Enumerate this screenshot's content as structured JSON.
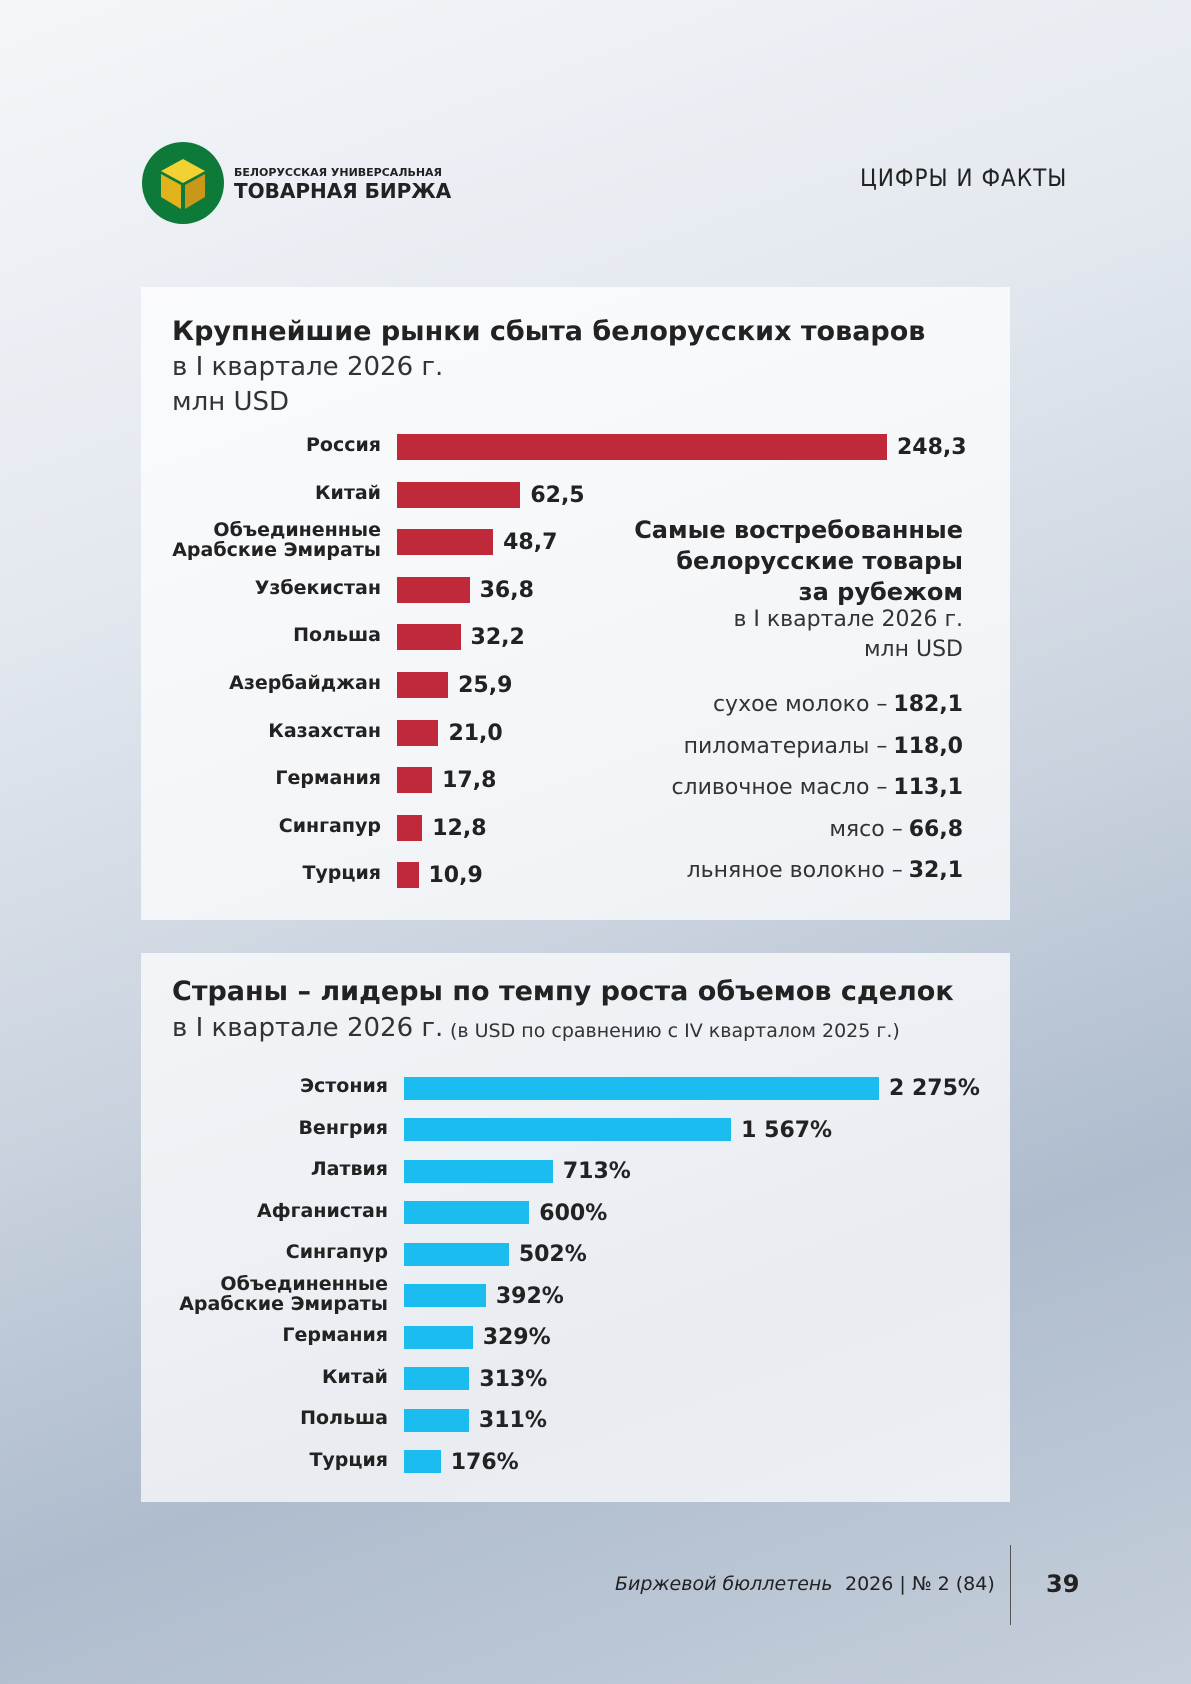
{
  "header": {
    "logo_line1": "БЕЛОРУССКАЯ УНИВЕРСАЛЬНАЯ",
    "logo_line2": "ТОВАРНАЯ БИРЖА",
    "section": "ЦИФРЫ И ФАКТЫ"
  },
  "chart_data": [
    {
      "type": "bar",
      "orientation": "horizontal",
      "title": "Крупнейшие рынки сбыта белорусских товаров",
      "subtitle": "в I квартале 2026 г.",
      "unit": "млн USD",
      "color": "#c0293a",
      "categories": [
        "Россия",
        "Китай",
        "Объединенные\nАрабские Эмираты",
        "Узбекистан",
        "Польша",
        "Азербайджан",
        "Казахстан",
        "Германия",
        "Сингапур",
        "Турция"
      ],
      "values": [
        248.3,
        62.5,
        48.7,
        36.8,
        32.2,
        25.9,
        21.0,
        17.8,
        12.8,
        10.9
      ],
      "value_labels": [
        "248,3",
        "62,5",
        "48,7",
        "36,8",
        "32,2",
        "25,9",
        "21,0",
        "17,8",
        "12,8",
        "10,9"
      ]
    },
    {
      "type": "bar",
      "orientation": "horizontal",
      "title": "Страны – лидеры по темпу роста объемов сделок",
      "subtitle": "в I квартале 2026 г.",
      "note": "(в USD по сравнению с IV кварталом 2025 г.)",
      "color": "#1bbdf0",
      "categories": [
        "Эстония",
        "Венгрия",
        "Латвия",
        "Афганистан",
        "Сингапур",
        "Объединенные\nАрабские Эмираты",
        "Германия",
        "Китай",
        "Польша",
        "Турция"
      ],
      "values": [
        2275,
        1567,
        713,
        600,
        502,
        392,
        329,
        313,
        311,
        176
      ],
      "value_labels": [
        "2 275%",
        "1 567%",
        "713%",
        "600%",
        "502%",
        "392%",
        "329%",
        "313%",
        "311%",
        "176%"
      ]
    }
  ],
  "products": {
    "title": "Самые востребованные\nбелорусские товары\nза рубежом",
    "subtitle": "в I квартале 2026 г.",
    "unit": "млн USD",
    "items": [
      {
        "name": "сухое молоко –",
        "value": "182,1"
      },
      {
        "name": "пиломатериалы –",
        "value": "118,0"
      },
      {
        "name": "сливочное масло –",
        "value": "113,1"
      },
      {
        "name": "мясо –",
        "value": "66,8"
      },
      {
        "name": "льняное волокно –",
        "value": "32,1"
      }
    ]
  },
  "footer": {
    "journal": "Биржевой бюллетень",
    "issue": "2026 | № 2 (84)",
    "page": "39"
  }
}
